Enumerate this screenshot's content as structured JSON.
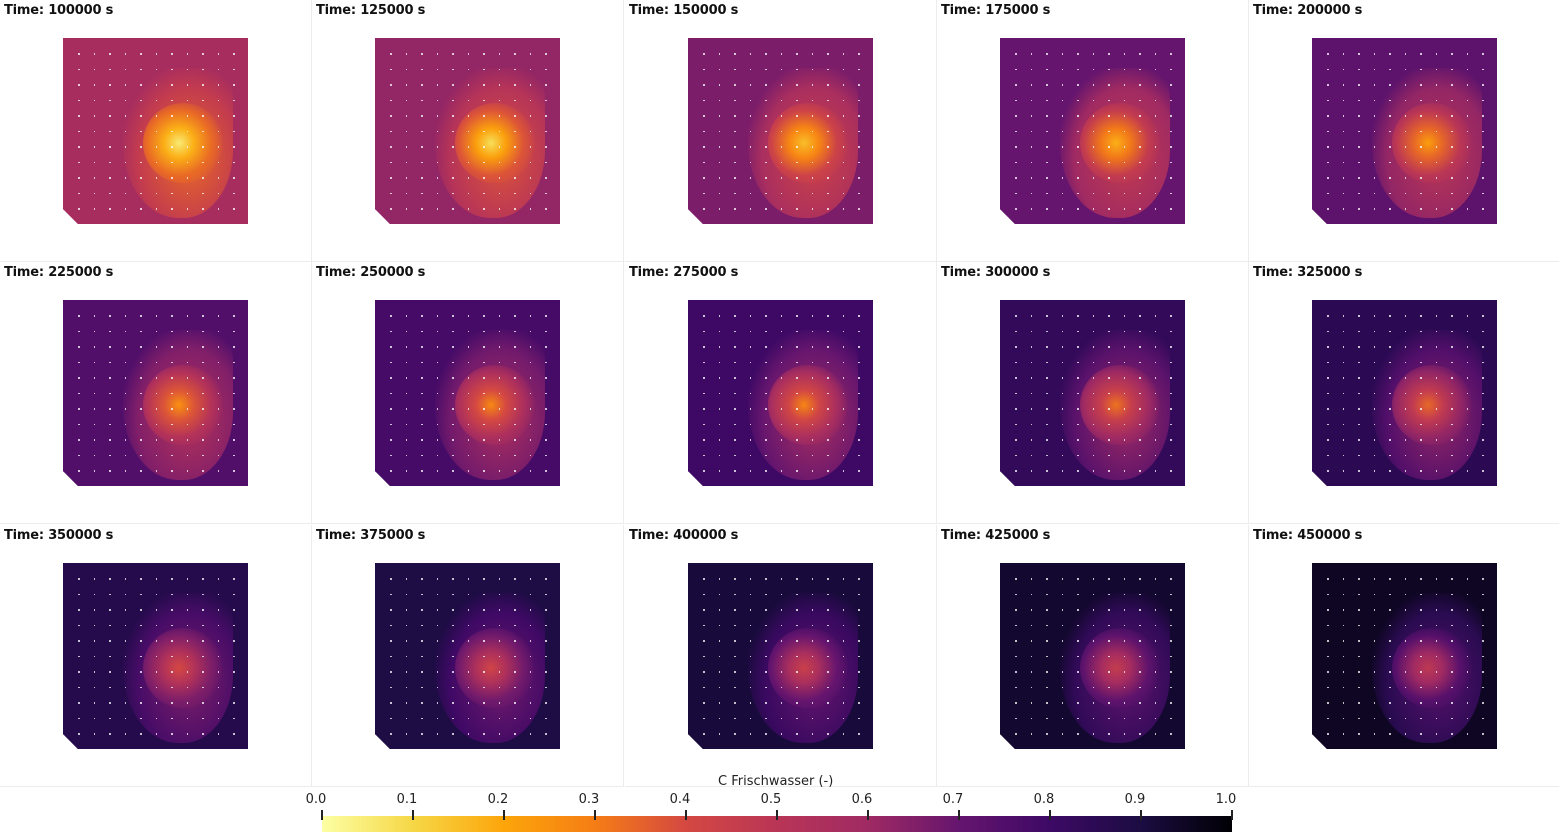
{
  "chart_data": {
    "type": "heatmap",
    "title": "C Frischwasser (-)",
    "layout": "3 rows x 5 columns of time-step panels",
    "panels": [
      {
        "label": "Time: 100000 s",
        "time_s": 100000,
        "background_value": 0.57,
        "peak_value": 0.05
      },
      {
        "label": "Time: 125000 s",
        "time_s": 125000,
        "background_value": 0.62,
        "peak_value": 0.08
      },
      {
        "label": "Time: 150000 s",
        "time_s": 150000,
        "background_value": 0.66,
        "peak_value": 0.15
      },
      {
        "label": "Time: 175000 s",
        "time_s": 175000,
        "background_value": 0.7,
        "peak_value": 0.18
      },
      {
        "label": "Time: 200000 s",
        "time_s": 200000,
        "background_value": 0.72,
        "peak_value": 0.22
      },
      {
        "label": "Time: 225000 s",
        "time_s": 225000,
        "background_value": 0.75,
        "peak_value": 0.25
      },
      {
        "label": "Time: 250000 s",
        "time_s": 250000,
        "background_value": 0.78,
        "peak_value": 0.27
      },
      {
        "label": "Time: 275000 s",
        "time_s": 275000,
        "background_value": 0.8,
        "peak_value": 0.28
      },
      {
        "label": "Time: 300000 s",
        "time_s": 300000,
        "background_value": 0.83,
        "peak_value": 0.32
      },
      {
        "label": "Time: 325000 s",
        "time_s": 325000,
        "background_value": 0.85,
        "peak_value": 0.34
      },
      {
        "label": "Time: 350000 s",
        "time_s": 350000,
        "background_value": 0.87,
        "peak_value": 0.4
      },
      {
        "label": "Time: 375000 s",
        "time_s": 375000,
        "background_value": 0.89,
        "peak_value": 0.42
      },
      {
        "label": "Time: 400000 s",
        "time_s": 400000,
        "background_value": 0.91,
        "peak_value": 0.44
      },
      {
        "label": "Time: 425000 s",
        "time_s": 425000,
        "background_value": 0.93,
        "peak_value": 0.46
      },
      {
        "label": "Time: 450000 s",
        "time_s": 450000,
        "background_value": 0.95,
        "peak_value": 0.48
      }
    ],
    "colorbar": {
      "label": "C Frischwasser (-)",
      "range": [
        0.0,
        1.0
      ],
      "colormap": "inferno (reversed)",
      "ticks": [
        "0.0",
        "0.1",
        "0.2",
        "0.3",
        "0.4",
        "0.5",
        "0.6",
        "0.7",
        "0.8",
        "0.9",
        "1.0"
      ],
      "placement": "bottom-center"
    }
  }
}
